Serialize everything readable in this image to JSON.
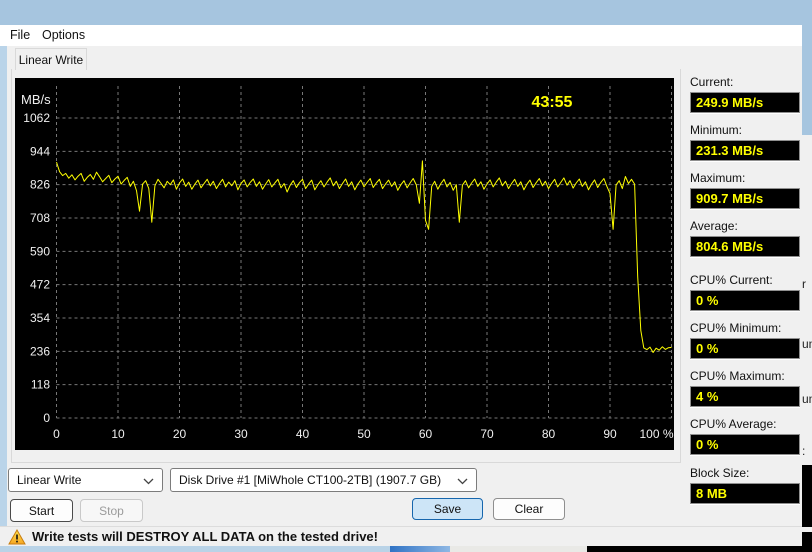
{
  "window": {
    "menu": {
      "file": "File",
      "options": "Options"
    },
    "tab_label": "Linear Write"
  },
  "chart_data": {
    "type": "line",
    "ylabel": "MB/s",
    "elapsed_label": "43:55",
    "line_color": "#ffff00",
    "background": "#000000",
    "grid": "dashed-gray",
    "ylim": [
      0,
      1180
    ],
    "y_ticks": [
      0,
      118,
      236,
      354,
      472,
      590,
      708,
      826,
      944,
      1062
    ],
    "x_ticks_pct": [
      0,
      10,
      20,
      30,
      40,
      50,
      60,
      70,
      80,
      90,
      100
    ],
    "x_tick_labels": [
      "0",
      "10",
      "20",
      "30",
      "40",
      "50",
      "60",
      "70",
      "80",
      "90",
      "100 %"
    ],
    "series": [
      {
        "name": "Linear Write speed (MB/s) vs position (%)",
        "x_start_pct": 0,
        "x_step_pct": 0.5,
        "values": [
          906,
          872,
          858,
          866,
          849,
          861,
          843,
          856,
          866,
          838,
          852,
          862,
          845,
          870,
          854,
          836,
          848,
          859,
          833,
          846,
          856,
          828,
          841,
          852,
          820,
          838,
          805,
          732,
          828,
          840,
          812,
          693,
          822,
          845,
          830,
          815,
          838,
          826,
          843,
          810,
          832,
          846,
          820,
          835,
          810,
          828,
          842,
          815,
          830,
          845,
          822,
          838,
          812,
          830,
          845,
          818,
          835,
          822,
          840,
          808,
          830,
          843,
          818,
          834,
          846,
          820,
          836,
          810,
          828,
          844,
          818,
          832,
          845,
          815,
          830,
          800,
          824,
          840,
          816,
          833,
          845,
          812,
          828,
          842,
          808,
          826,
          840,
          818,
          835,
          850,
          822,
          838,
          812,
          830,
          846,
          820,
          836,
          808,
          828,
          842,
          818,
          834,
          848,
          816,
          832,
          845,
          812,
          828,
          842,
          820,
          836,
          806,
          826,
          840,
          815,
          832,
          848,
          825,
          760,
          910,
          700,
          668,
          820,
          838,
          810,
          830,
          845,
          818,
          834,
          806,
          826,
          693,
          824,
          840,
          815,
          832,
          846,
          820,
          836,
          810,
          828,
          843,
          818,
          835,
          850,
          822,
          838,
          812,
          830,
          845,
          820,
          836,
          808,
          828,
          842,
          816,
          833,
          848,
          822,
          838,
          812,
          830,
          845,
          818,
          834,
          850,
          824,
          840,
          814,
          832,
          846,
          820,
          836,
          808,
          828,
          843,
          816,
          834,
          848,
          820,
          795,
          668,
          825,
          840,
          812,
          855,
          830,
          845,
          828,
          500,
          310,
          248,
          242,
          251,
          232,
          247,
          240,
          252,
          243,
          249,
          250
        ]
      }
    ]
  },
  "panel": {
    "stats": [
      {
        "label": "Current:",
        "value": "249.9 MB/s"
      },
      {
        "label": "Minimum:",
        "value": "231.3 MB/s"
      },
      {
        "label": "Maximum:",
        "value": "909.7 MB/s"
      },
      {
        "label": "Average:",
        "value": "804.6 MB/s"
      },
      {
        "label": "CPU% Current:",
        "value": "0 %"
      },
      {
        "label": "CPU% Minimum:",
        "value": "0 %"
      },
      {
        "label": "CPU% Maximum:",
        "value": "4 %"
      },
      {
        "label": "CPU% Average:",
        "value": "0 %"
      },
      {
        "label": "Block Size:",
        "value": "8 MB"
      }
    ]
  },
  "controls": {
    "test_select_value": "Linear Write",
    "drive_select_value": "Disk Drive #1  [MiWhole CT100-2TB]  (1907.7 GB)",
    "start_label": "Start",
    "stop_label": "Stop",
    "save_label": "Save",
    "clear_label": "Clear"
  },
  "status": {
    "warning_text": "Write tests will DESTROY ALL DATA on the tested drive!"
  },
  "background_windows": {
    "right_sliver_fragments": [
      "r",
      "um:",
      "um:",
      ":"
    ]
  },
  "colors": {
    "titlebar_blue": "#a6c5df",
    "body_gray": "#f0f0f0",
    "chart_black": "#000000",
    "plot_yellow": "#ffff00",
    "grid_gray": "#777777",
    "save_button_fill": "#cde5f7",
    "save_button_border": "#1666ad"
  }
}
